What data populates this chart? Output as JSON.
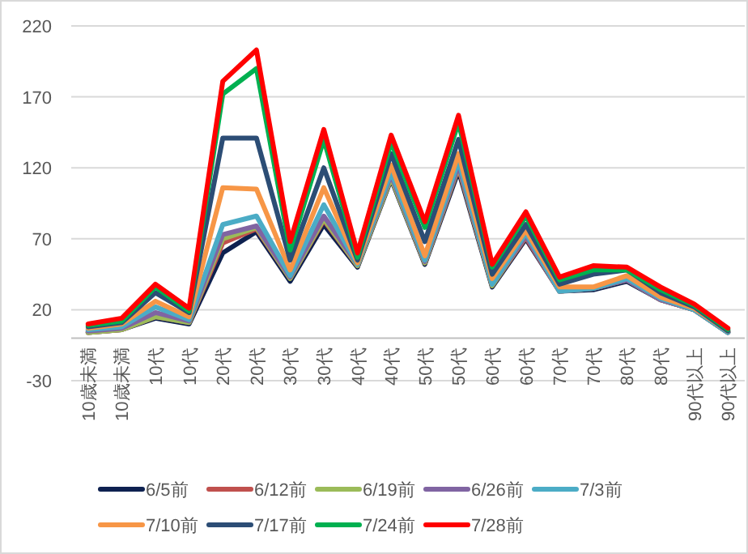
{
  "chart_data": {
    "type": "line",
    "categories": [
      "10歳未満",
      "10歳未満",
      "10代",
      "10代",
      "20代",
      "20代",
      "30代",
      "30代",
      "40代",
      "40代",
      "50代",
      "50代",
      "60代",
      "60代",
      "70代",
      "70代",
      "80代",
      "80代",
      "90代以上",
      "90代以上"
    ],
    "series": [
      {
        "name": "6/5前",
        "color": "#0e2150",
        "values": [
          4,
          6,
          14,
          10,
          60,
          75,
          40,
          80,
          50,
          112,
          52,
          118,
          36,
          70,
          33,
          34,
          40,
          27,
          20,
          4
        ]
      },
      {
        "name": "6/12前",
        "color": "#c0504d",
        "values": [
          4,
          6,
          15,
          11,
          67,
          77,
          42,
          83,
          51,
          113,
          53,
          120,
          37,
          71,
          33,
          35,
          41,
          27,
          20,
          4
        ]
      },
      {
        "name": "6/19前",
        "color": "#9bbb59",
        "values": [
          4,
          6,
          15,
          11,
          70,
          78,
          42,
          84,
          51,
          113,
          53,
          121,
          37,
          72,
          33,
          35,
          41,
          27,
          20,
          4
        ]
      },
      {
        "name": "6/26前",
        "color": "#8064a2",
        "values": [
          5,
          7,
          18,
          12,
          73,
          79,
          43,
          86,
          52,
          115,
          54,
          122,
          38,
          72,
          33,
          35,
          41,
          27,
          20,
          4
        ]
      },
      {
        "name": "7/3前",
        "color": "#4bacc6",
        "values": [
          6,
          8,
          22,
          13,
          80,
          86,
          44,
          94,
          52,
          117,
          55,
          125,
          38,
          74,
          33,
          35,
          42,
          28,
          20,
          4
        ]
      },
      {
        "name": "7/10前",
        "color": "#f79646",
        "values": [
          7,
          10,
          26,
          15,
          106,
          105,
          48,
          106,
          53,
          122,
          58,
          130,
          42,
          76,
          36,
          36,
          44,
          29,
          21,
          5
        ]
      },
      {
        "name": "7/17前",
        "color": "#2c4d75",
        "values": [
          8,
          11,
          32,
          18,
          141,
          141,
          55,
          120,
          55,
          130,
          68,
          140,
          45,
          80,
          38,
          45,
          48,
          32,
          22,
          5
        ]
      },
      {
        "name": "7/24前",
        "color": "#00b050",
        "values": [
          9,
          12,
          36,
          19,
          172,
          190,
          62,
          140,
          57,
          138,
          78,
          152,
          50,
          86,
          41,
          48,
          48,
          34,
          23,
          6
        ]
      },
      {
        "name": "7/28前",
        "color": "#ff0000",
        "values": [
          10,
          14,
          38,
          21,
          181,
          203,
          68,
          147,
          60,
          143,
          82,
          157,
          52,
          89,
          43,
          51,
          50,
          36,
          24,
          7
        ]
      }
    ],
    "ylim": [
      -30,
      220
    ],
    "yticks": [
      -30,
      20,
      70,
      120,
      170,
      220
    ],
    "grid": "y",
    "legend": "bottom",
    "marker": "none",
    "line_style": "solid"
  }
}
